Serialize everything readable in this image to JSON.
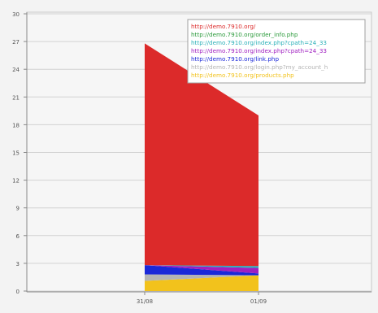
{
  "chart_data": {
    "type": "area",
    "categories": [
      "31/08",
      "01/09"
    ],
    "ylim": [
      0,
      30
    ],
    "yticks": [
      0,
      3,
      6,
      9,
      12,
      15,
      18,
      21,
      24,
      27,
      30
    ],
    "grid": true,
    "legend_position": "top-right",
    "series": [
      {
        "name": "http://demo.7910.org/",
        "color": "#dc2a2a",
        "values": [
          24,
          16.3
        ]
      },
      {
        "name": "http://demo.7910.org/order_info.php",
        "color": "#2a9a3a",
        "values": [
          0,
          0
        ]
      },
      {
        "name": "http://demo.7910.org/index.php?cpath=24_33",
        "color": "#2ab0b8",
        "values": [
          0,
          0.2
        ]
      },
      {
        "name": "http://demo.7910.org/index.php?cpath=24_33",
        "color": "#a020c0",
        "values": [
          0,
          0.6
        ]
      },
      {
        "name": "http://demo.7910.org/link.php",
        "color": "#1a28d8",
        "values": [
          1,
          0.2
        ]
      },
      {
        "name": "http://demo.7910.org/login.php?my_account_h",
        "color": "#b4b4b4",
        "values": [
          0.7,
          0
        ]
      },
      {
        "name": "http://demo.7910.org/products.php",
        "color": "#f2c21c",
        "values": [
          1.1,
          1.7
        ]
      }
    ]
  }
}
